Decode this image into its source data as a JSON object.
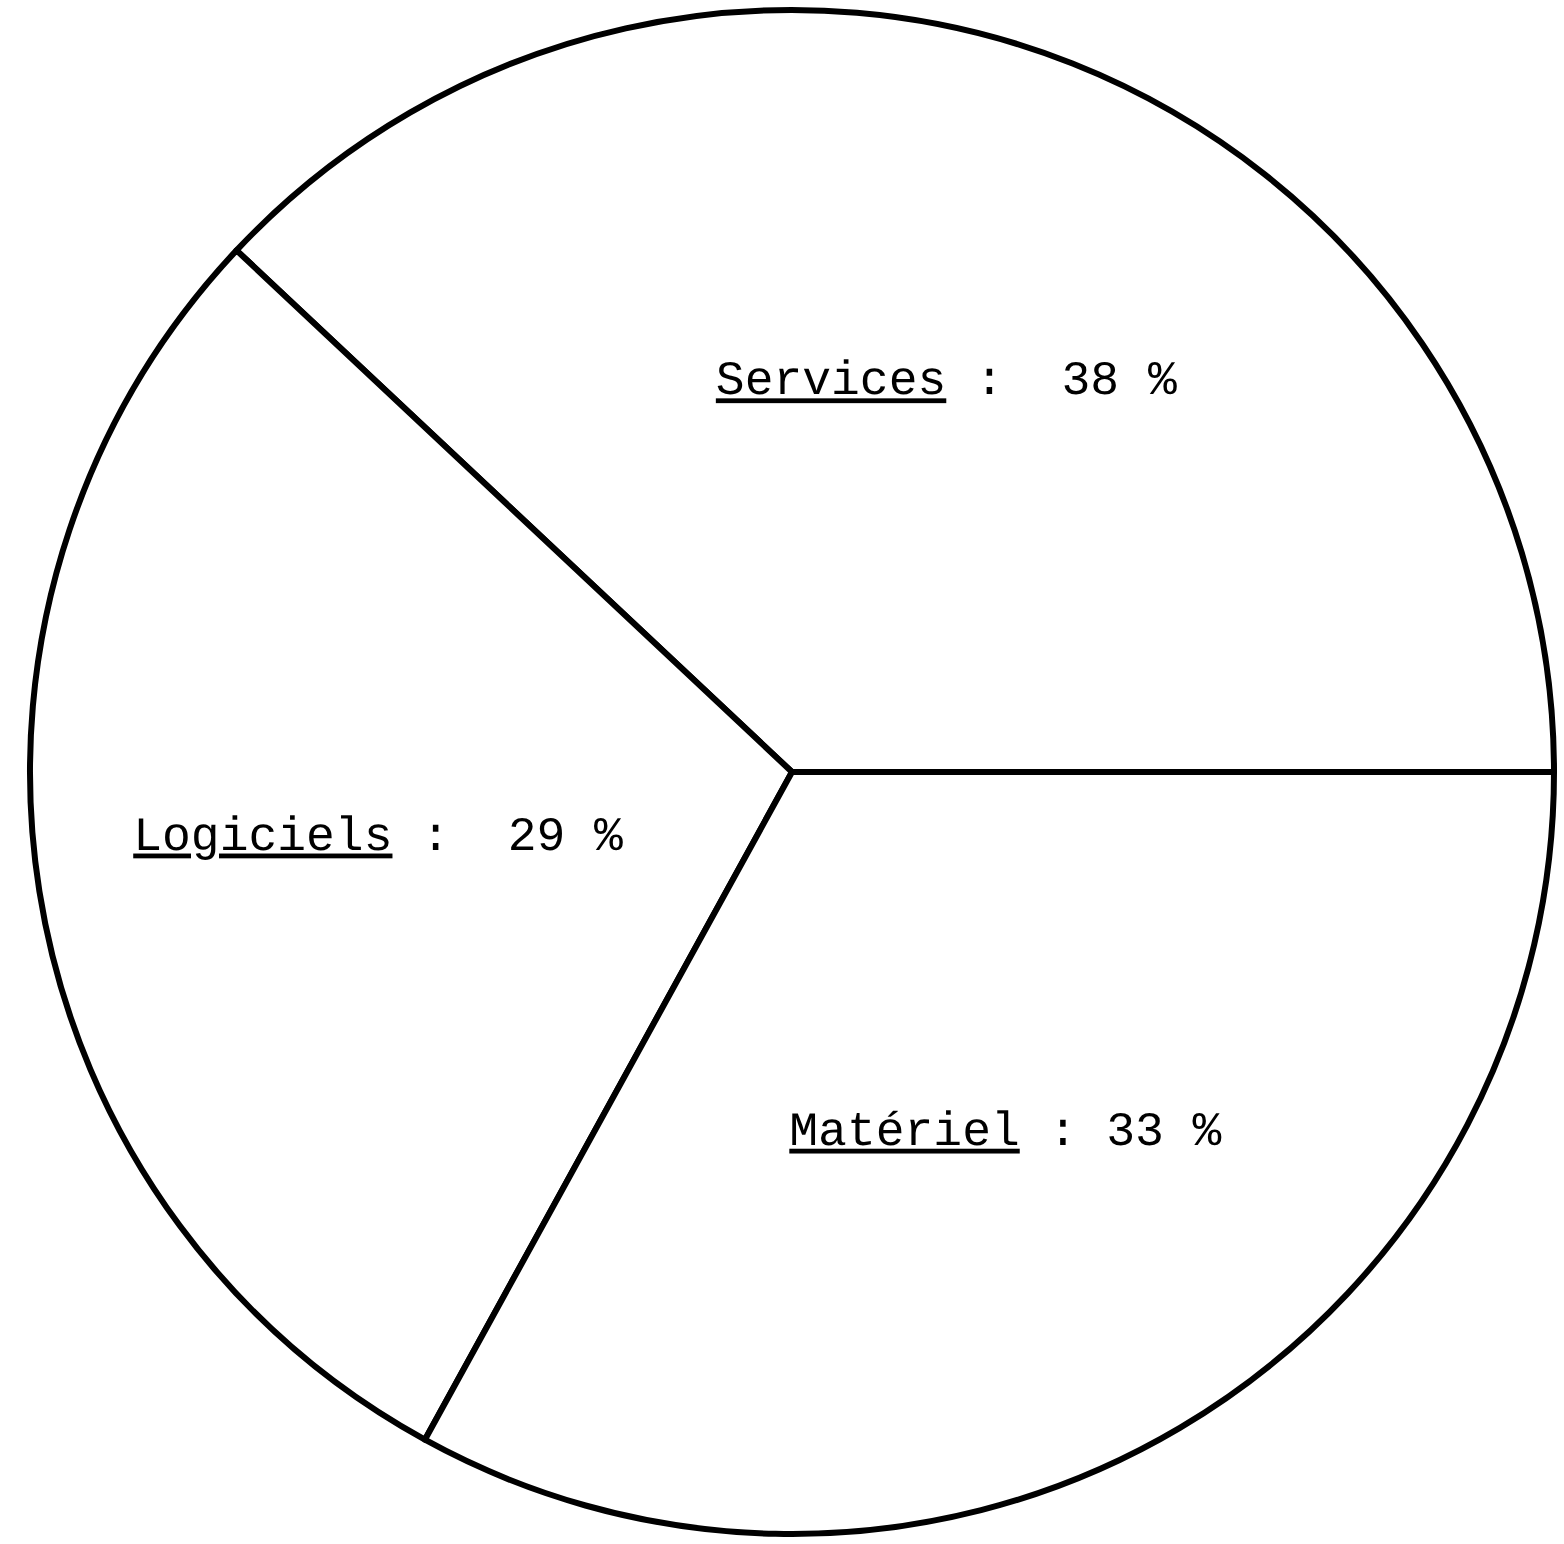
{
  "chart_data": {
    "type": "pie",
    "categories": [
      "Services",
      "Logiciels",
      "Matériel"
    ],
    "values": [
      38,
      29,
      33
    ],
    "value_labels": [
      ":  38 %",
      ":  29 %",
      ": 33 %"
    ],
    "colors": [
      "#ffffff",
      "#ffffff",
      "#ffffff"
    ]
  }
}
